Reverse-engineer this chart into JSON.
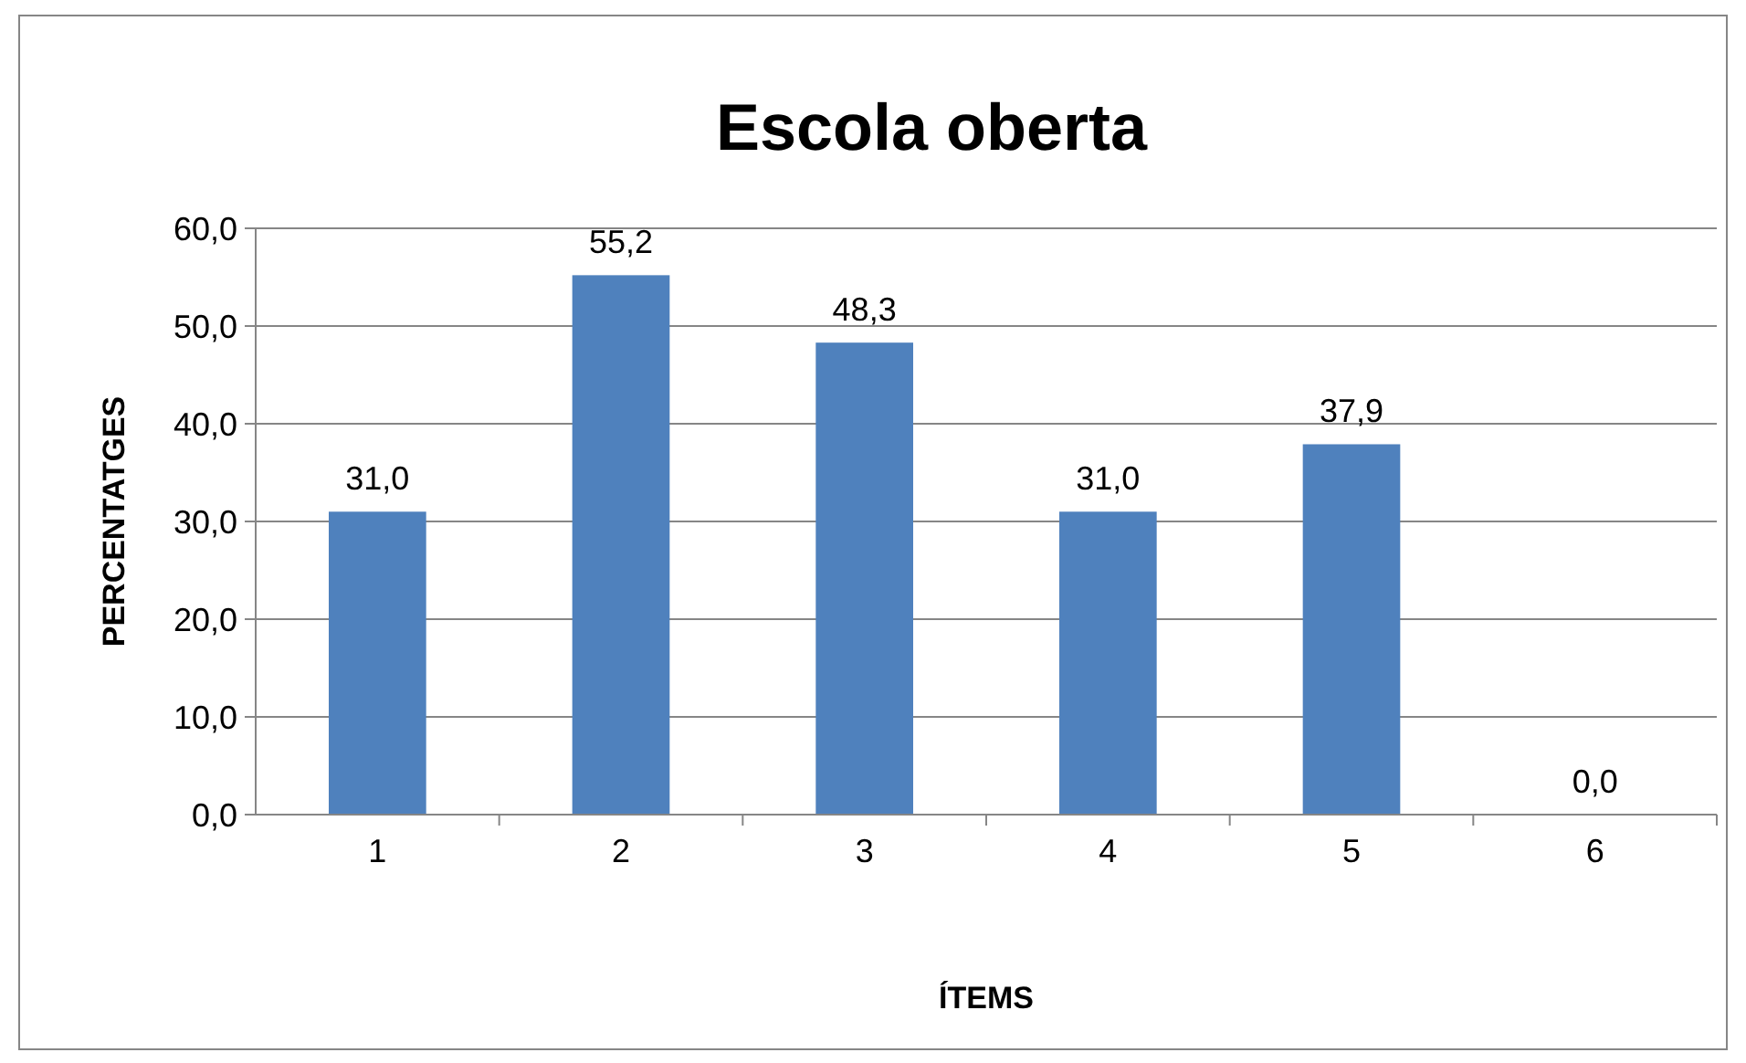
{
  "chart_data": {
    "type": "bar",
    "title": "Escola oberta",
    "xlabel": "ÍTEMS",
    "ylabel": "PERCENTATGES",
    "categories": [
      "1",
      "2",
      "3",
      "4",
      "5",
      "6"
    ],
    "values": [
      31.0,
      55.2,
      48.3,
      31.0,
      37.9,
      0.0
    ],
    "value_labels": [
      "31,0",
      "55,2",
      "48,3",
      "31,0",
      "37,9",
      "0,0"
    ],
    "color": "#4f81bd",
    "ylim": [
      0,
      60
    ],
    "yticks": [
      {
        "value": 0,
        "label": "0,0"
      },
      {
        "value": 10,
        "label": "10,0"
      },
      {
        "value": 20,
        "label": "20,0"
      },
      {
        "value": 30,
        "label": "30,0"
      },
      {
        "value": 40,
        "label": "40,0"
      },
      {
        "value": 50,
        "label": "50,0"
      },
      {
        "value": 60,
        "label": "60,0"
      }
    ],
    "grid": "y"
  }
}
